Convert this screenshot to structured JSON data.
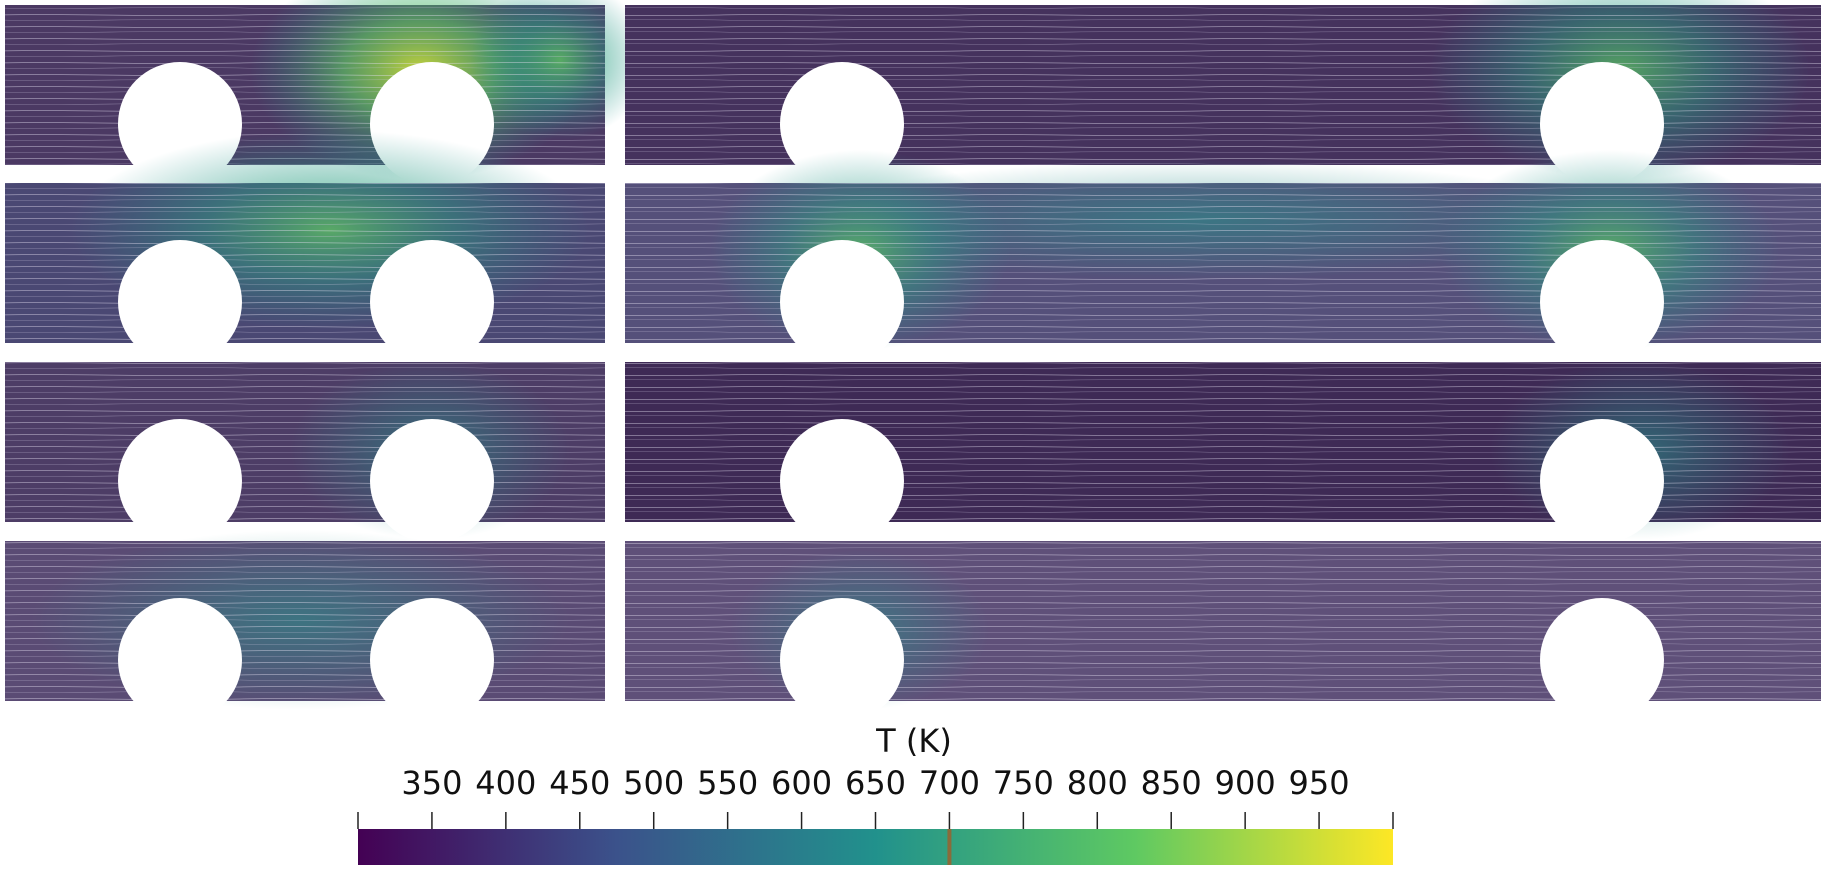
{
  "figure": {
    "panels": [
      {
        "id": "row1-left"
      },
      {
        "id": "row1-right"
      },
      {
        "id": "row2-left"
      },
      {
        "id": "row2-right"
      },
      {
        "id": "row3-left"
      },
      {
        "id": "row3-right"
      },
      {
        "id": "row4-left"
      },
      {
        "id": "row4-right"
      }
    ]
  },
  "colorbar": {
    "title": "T (K)",
    "range": [
      300,
      1000
    ],
    "ticks": [
      350,
      400,
      450,
      500,
      550,
      600,
      650,
      700,
      750,
      800,
      850,
      900,
      950
    ],
    "tick_labels": [
      "350",
      "400",
      "450",
      "500",
      "550",
      "600",
      "650",
      "700",
      "750",
      "800",
      "850",
      "900",
      "950"
    ],
    "marker_value": 700,
    "marker_color": "#8a6b3a",
    "colormap": [
      "#440154",
      "#3b528b",
      "#21918c",
      "#5ec962",
      "#fde725"
    ]
  },
  "colors": {
    "background": "#ffffff",
    "cold": "#4a3a62",
    "streamline": "#d9d4e6"
  }
}
